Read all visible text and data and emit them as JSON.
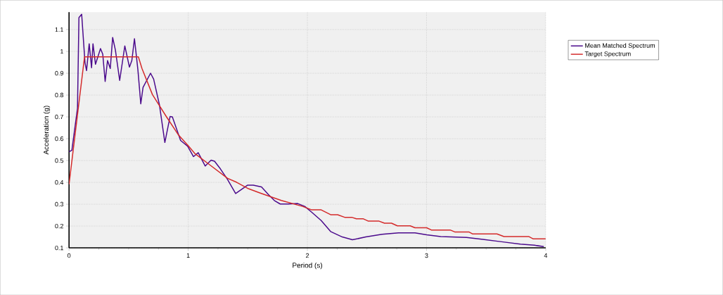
{
  "chart_data": {
    "type": "line",
    "xlabel": "Period (s)",
    "ylabel": "Acceleration (g)",
    "xlim": [
      0,
      4
    ],
    "ylim": [
      0.1,
      1.18
    ],
    "xticks": [
      0,
      1,
      2,
      3,
      4
    ],
    "yticks": [
      0.1,
      0.2,
      0.3,
      0.4,
      0.5,
      0.6,
      0.7,
      0.8,
      0.9,
      1,
      1.1
    ],
    "grid": true,
    "legend": "top right",
    "marker": "none",
    "line_style": "solid",
    "series": [
      {
        "name": "Mean Matched Spectrum",
        "color": "#4b0a8c",
        "x": [
          0,
          0.024,
          0.071,
          0.083,
          0.106,
          0.134,
          0.147,
          0.169,
          0.189,
          0.201,
          0.222,
          0.264,
          0.283,
          0.303,
          0.323,
          0.346,
          0.366,
          0.389,
          0.425,
          0.468,
          0.507,
          0.527,
          0.549,
          0.578,
          0.602,
          0.621,
          0.684,
          0.71,
          0.759,
          0.804,
          0.848,
          0.867,
          0.936,
          0.995,
          1.044,
          1.084,
          1.143,
          1.192,
          1.221,
          1.27,
          1.329,
          1.398,
          1.497,
          1.546,
          1.615,
          1.674,
          1.723,
          1.772,
          1.841,
          1.919,
          1.978,
          2.037,
          2.116,
          2.195,
          2.293,
          2.378,
          2.49,
          2.627,
          2.765,
          2.903,
          3.001,
          3.119,
          3.335,
          3.473,
          3.63,
          3.788,
          3.906,
          3.984
        ],
        "values": [
          0.54,
          0.547,
          0.74,
          1.155,
          1.17,
          0.948,
          0.912,
          1.035,
          0.925,
          1.035,
          0.941,
          1.013,
          0.987,
          0.862,
          0.958,
          0.922,
          1.064,
          1.006,
          0.867,
          1.025,
          0.928,
          0.958,
          1.058,
          0.915,
          0.76,
          0.835,
          0.9,
          0.873,
          0.754,
          0.583,
          0.702,
          0.7,
          0.592,
          0.566,
          0.518,
          0.536,
          0.475,
          0.502,
          0.497,
          0.462,
          0.414,
          0.349,
          0.387,
          0.387,
          0.379,
          0.344,
          0.317,
          0.301,
          0.301,
          0.303,
          0.29,
          0.263,
          0.225,
          0.175,
          0.15,
          0.137,
          0.15,
          0.162,
          0.169,
          0.169,
          0.16,
          0.152,
          0.148,
          0.139,
          0.128,
          0.117,
          0.112,
          0.106
        ]
      },
      {
        "name": "Target Spectrum",
        "color": "#d42a2a",
        "x": [
          0,
          0.13,
          0.582,
          0.612,
          0.7,
          0.818,
          0.916,
          1.003,
          1.054,
          1.172,
          1.329,
          1.408,
          1.506,
          1.605,
          1.782,
          1.959,
          2.037,
          2.116,
          2.195,
          2.254,
          2.313,
          2.372,
          2.411,
          2.47,
          2.509,
          2.598,
          2.647,
          2.706,
          2.755,
          2.863,
          2.903,
          3.001,
          3.04,
          3.198,
          3.237,
          3.355,
          3.385,
          3.591,
          3.65,
          3.857,
          3.896,
          4.0
        ],
        "values": [
          0.391,
          0.975,
          0.975,
          0.922,
          0.802,
          0.7,
          0.619,
          0.566,
          0.533,
          0.484,
          0.419,
          0.4,
          0.371,
          0.351,
          0.317,
          0.29,
          0.274,
          0.274,
          0.252,
          0.252,
          0.24,
          0.24,
          0.233,
          0.233,
          0.223,
          0.223,
          0.213,
          0.213,
          0.201,
          0.201,
          0.192,
          0.192,
          0.182,
          0.182,
          0.173,
          0.173,
          0.164,
          0.164,
          0.152,
          0.152,
          0.141,
          0.141
        ]
      }
    ]
  }
}
